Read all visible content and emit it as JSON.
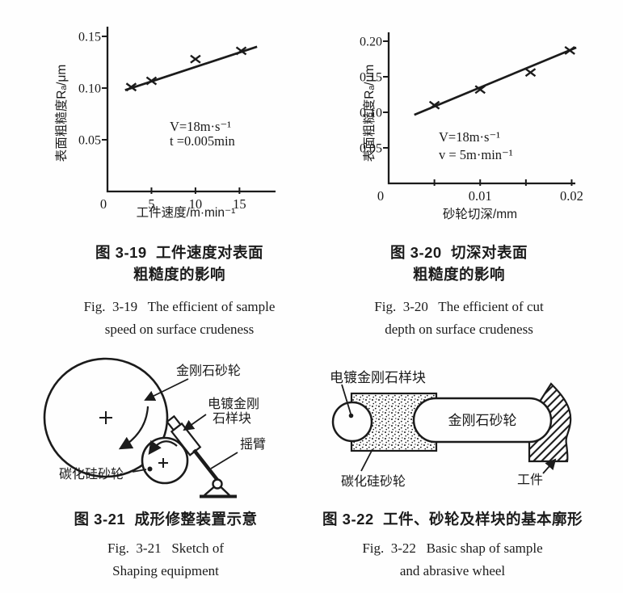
{
  "page": {
    "background": "#fefefe",
    "ink": "#1b1b1b"
  },
  "chart_data": [
    {
      "type": "scatter",
      "title": "图 3-19 工件速度对表面粗糙度的影响",
      "xlabel": "工件速度/m·min⁻¹",
      "ylabel": "表面粗糙度Rₐ/μm",
      "origin_label": "0",
      "xlim": [
        0,
        19.1
      ],
      "ylim": [
        0,
        0.1594
      ],
      "grid": false,
      "xticks": [
        {
          "v": 5,
          "label": "5"
        },
        {
          "v": 10,
          "label": "10"
        },
        {
          "v": 15,
          "label": "15"
        }
      ],
      "yticks": [
        {
          "v": 0.05,
          "label": "0.05"
        },
        {
          "v": 0.1,
          "label": "0.10"
        },
        {
          "v": 0.15,
          "label": "0.15"
        }
      ],
      "points": [
        [
          2.7,
          0.101
        ],
        [
          5.0,
          0.107
        ],
        [
          10.0,
          0.128
        ],
        [
          15.2,
          0.136
        ]
      ],
      "trend_line": [
        [
          2.0,
          0.098
        ],
        [
          17.0,
          0.14
        ]
      ],
      "annotations": [
        "V=18m·s⁻¹",
        "t =0.005min"
      ]
    },
    {
      "type": "scatter",
      "title": "图 3-20 切深对表面粗糙度的影响",
      "xlabel": "砂轮切深/mm",
      "ylabel": "表面粗糙度Rₐ/μm",
      "origin_label": "0",
      "xlim": [
        0,
        0.0204
      ],
      "ylim": [
        0,
        0.2125
      ],
      "grid": false,
      "xticks": [
        {
          "v": 0.005,
          "label": ""
        },
        {
          "v": 0.01,
          "label": "0.01"
        },
        {
          "v": 0.015,
          "label": ""
        },
        {
          "v": 0.02,
          "label": "0.02"
        }
      ],
      "yticks": [
        {
          "v": 0.05,
          "label": "0.05"
        },
        {
          "v": 0.1,
          "label": "0.10"
        },
        {
          "v": 0.15,
          "label": "0.15"
        },
        {
          "v": 0.2,
          "label": "0.20"
        }
      ],
      "points": [
        [
          0.005,
          0.11
        ],
        [
          0.01,
          0.132
        ],
        [
          0.0155,
          0.156
        ],
        [
          0.0198,
          0.187
        ]
      ],
      "trend_line": [
        [
          0.0028,
          0.0965
        ],
        [
          0.0205,
          0.191
        ]
      ],
      "annotations": [
        "V=18m·s⁻¹",
        "v = 5m·min⁻¹"
      ]
    }
  ],
  "captions": {
    "fig19": {
      "cn_line1": "图 3-19  工件速度对表面",
      "cn_line2": "粗糙度的影响",
      "en_line1": "Fig.  3-19   The efficient of sample",
      "en_line2": "speed on surface crudeness"
    },
    "fig20": {
      "cn_line1": "图 3-20  切深对表面",
      "cn_line2": "粗糙度的影响",
      "en_line1": "Fig.  3-20   The efficient of cut",
      "en_line2": "depth on surface crudeness"
    },
    "fig21": {
      "cn_line1": "图 3-21  成形修整装置示意",
      "en_line1": "Fig.  3-21   Sketch of",
      "en_line2": "Shaping equipment"
    },
    "fig22": {
      "cn_line1": "图 3-22  工件、砂轮及样块的基本廓形",
      "en_line1": "Fig.  3-22   Basic shap of sample",
      "en_line2": "and abrasive wheel"
    }
  },
  "diagrams": {
    "fig21": {
      "labels": {
        "diamond_wheel": "金刚石砂轮",
        "plated_sample_line1": "电镀金刚",
        "plated_sample_line2": "石样块",
        "rocker_arm": "摇臂",
        "sic_wheel": "碳化硅砂轮"
      }
    },
    "fig22": {
      "labels": {
        "plated_sample": "电镀金刚石样块",
        "diamond_wheel": "金刚石砂轮",
        "sic_wheel": "碳化硅砂轮",
        "workpiece": "工件"
      }
    }
  }
}
